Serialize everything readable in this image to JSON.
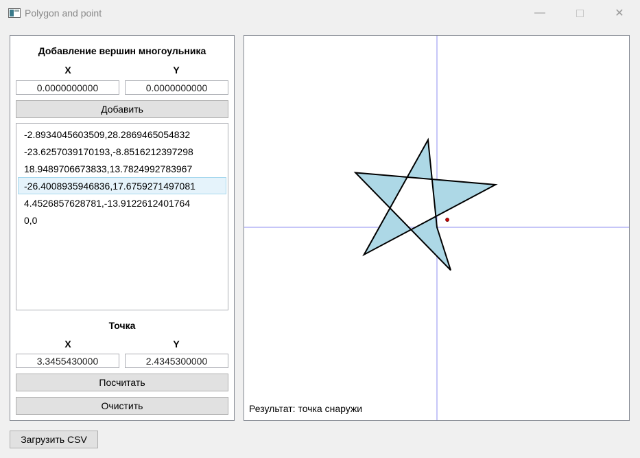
{
  "window": {
    "title": "Polygon and point",
    "min_glyph": "—",
    "close_glyph": "✕"
  },
  "vertices_section": {
    "title": "Добавление вершин многоульника",
    "x_label": "X",
    "y_label": "Y",
    "x_value": "0.0000000000",
    "y_value": "0.0000000000",
    "add_label": "Добавить"
  },
  "vertex_list": [
    "-2.8934045603509,28.2869465054832",
    "-23.6257039170193,-8.8516212397298",
    "18.9489706673833,13.7824992783967",
    "-26.4008935946836,17.6759271497081",
    "4.4526857628781,-13.9122612401764",
    "0,0"
  ],
  "selected_vertex_index": 3,
  "point_section": {
    "title": "Точка",
    "x_label": "X",
    "y_label": "Y",
    "x_value": "3.3455430000",
    "y_value": "2.4345300000",
    "calc_label": "Посчитать",
    "clear_label": "Очистить"
  },
  "result": {
    "label": "Результат:",
    "value": "точка снаружи"
  },
  "csv_button_label": "Загрузить CSV",
  "colors": {
    "polygon_fill": "#add8e6",
    "polygon_stroke": "#000000",
    "axes": "#8c8cf0",
    "point": "#cc0000"
  }
}
